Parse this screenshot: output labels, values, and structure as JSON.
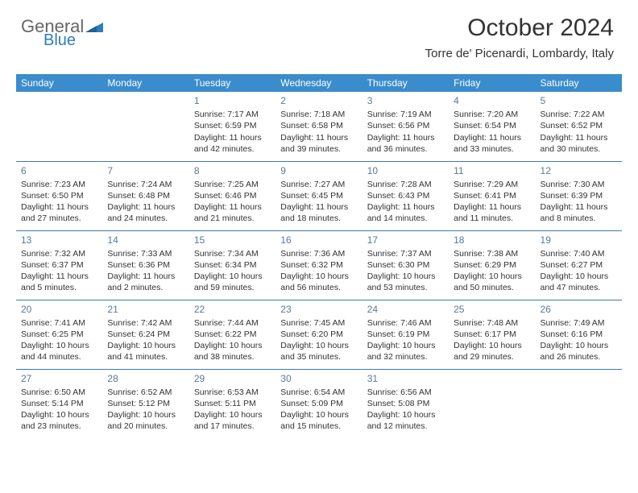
{
  "brand": {
    "line1": "General",
    "line2": "Blue",
    "tri_color": "#2f7bbf"
  },
  "header": {
    "month_year": "October 2024",
    "location": "Torre de' Picenardi, Lombardy, Italy"
  },
  "colors": {
    "header_bg": "#3b8ccc",
    "header_text": "#ffffff",
    "rule": "#3b7bb0",
    "daynum": "#5a7a94",
    "text": "#333333"
  },
  "daysOfWeek": [
    "Sunday",
    "Monday",
    "Tuesday",
    "Wednesday",
    "Thursday",
    "Friday",
    "Saturday"
  ],
  "weeks": [
    [
      null,
      null,
      {
        "n": "1",
        "sunrise": "Sunrise: 7:17 AM",
        "sunset": "Sunset: 6:59 PM",
        "daylight": "Daylight: 11 hours and 42 minutes."
      },
      {
        "n": "2",
        "sunrise": "Sunrise: 7:18 AM",
        "sunset": "Sunset: 6:58 PM",
        "daylight": "Daylight: 11 hours and 39 minutes."
      },
      {
        "n": "3",
        "sunrise": "Sunrise: 7:19 AM",
        "sunset": "Sunset: 6:56 PM",
        "daylight": "Daylight: 11 hours and 36 minutes."
      },
      {
        "n": "4",
        "sunrise": "Sunrise: 7:20 AM",
        "sunset": "Sunset: 6:54 PM",
        "daylight": "Daylight: 11 hours and 33 minutes."
      },
      {
        "n": "5",
        "sunrise": "Sunrise: 7:22 AM",
        "sunset": "Sunset: 6:52 PM",
        "daylight": "Daylight: 11 hours and 30 minutes."
      }
    ],
    [
      {
        "n": "6",
        "sunrise": "Sunrise: 7:23 AM",
        "sunset": "Sunset: 6:50 PM",
        "daylight": "Daylight: 11 hours and 27 minutes."
      },
      {
        "n": "7",
        "sunrise": "Sunrise: 7:24 AM",
        "sunset": "Sunset: 6:48 PM",
        "daylight": "Daylight: 11 hours and 24 minutes."
      },
      {
        "n": "8",
        "sunrise": "Sunrise: 7:25 AM",
        "sunset": "Sunset: 6:46 PM",
        "daylight": "Daylight: 11 hours and 21 minutes."
      },
      {
        "n": "9",
        "sunrise": "Sunrise: 7:27 AM",
        "sunset": "Sunset: 6:45 PM",
        "daylight": "Daylight: 11 hours and 18 minutes."
      },
      {
        "n": "10",
        "sunrise": "Sunrise: 7:28 AM",
        "sunset": "Sunset: 6:43 PM",
        "daylight": "Daylight: 11 hours and 14 minutes."
      },
      {
        "n": "11",
        "sunrise": "Sunrise: 7:29 AM",
        "sunset": "Sunset: 6:41 PM",
        "daylight": "Daylight: 11 hours and 11 minutes."
      },
      {
        "n": "12",
        "sunrise": "Sunrise: 7:30 AM",
        "sunset": "Sunset: 6:39 PM",
        "daylight": "Daylight: 11 hours and 8 minutes."
      }
    ],
    [
      {
        "n": "13",
        "sunrise": "Sunrise: 7:32 AM",
        "sunset": "Sunset: 6:37 PM",
        "daylight": "Daylight: 11 hours and 5 minutes."
      },
      {
        "n": "14",
        "sunrise": "Sunrise: 7:33 AM",
        "sunset": "Sunset: 6:36 PM",
        "daylight": "Daylight: 11 hours and 2 minutes."
      },
      {
        "n": "15",
        "sunrise": "Sunrise: 7:34 AM",
        "sunset": "Sunset: 6:34 PM",
        "daylight": "Daylight: 10 hours and 59 minutes."
      },
      {
        "n": "16",
        "sunrise": "Sunrise: 7:36 AM",
        "sunset": "Sunset: 6:32 PM",
        "daylight": "Daylight: 10 hours and 56 minutes."
      },
      {
        "n": "17",
        "sunrise": "Sunrise: 7:37 AM",
        "sunset": "Sunset: 6:30 PM",
        "daylight": "Daylight: 10 hours and 53 minutes."
      },
      {
        "n": "18",
        "sunrise": "Sunrise: 7:38 AM",
        "sunset": "Sunset: 6:29 PM",
        "daylight": "Daylight: 10 hours and 50 minutes."
      },
      {
        "n": "19",
        "sunrise": "Sunrise: 7:40 AM",
        "sunset": "Sunset: 6:27 PM",
        "daylight": "Daylight: 10 hours and 47 minutes."
      }
    ],
    [
      {
        "n": "20",
        "sunrise": "Sunrise: 7:41 AM",
        "sunset": "Sunset: 6:25 PM",
        "daylight": "Daylight: 10 hours and 44 minutes."
      },
      {
        "n": "21",
        "sunrise": "Sunrise: 7:42 AM",
        "sunset": "Sunset: 6:24 PM",
        "daylight": "Daylight: 10 hours and 41 minutes."
      },
      {
        "n": "22",
        "sunrise": "Sunrise: 7:44 AM",
        "sunset": "Sunset: 6:22 PM",
        "daylight": "Daylight: 10 hours and 38 minutes."
      },
      {
        "n": "23",
        "sunrise": "Sunrise: 7:45 AM",
        "sunset": "Sunset: 6:20 PM",
        "daylight": "Daylight: 10 hours and 35 minutes."
      },
      {
        "n": "24",
        "sunrise": "Sunrise: 7:46 AM",
        "sunset": "Sunset: 6:19 PM",
        "daylight": "Daylight: 10 hours and 32 minutes."
      },
      {
        "n": "25",
        "sunrise": "Sunrise: 7:48 AM",
        "sunset": "Sunset: 6:17 PM",
        "daylight": "Daylight: 10 hours and 29 minutes."
      },
      {
        "n": "26",
        "sunrise": "Sunrise: 7:49 AM",
        "sunset": "Sunset: 6:16 PM",
        "daylight": "Daylight: 10 hours and 26 minutes."
      }
    ],
    [
      {
        "n": "27",
        "sunrise": "Sunrise: 6:50 AM",
        "sunset": "Sunset: 5:14 PM",
        "daylight": "Daylight: 10 hours and 23 minutes."
      },
      {
        "n": "28",
        "sunrise": "Sunrise: 6:52 AM",
        "sunset": "Sunset: 5:12 PM",
        "daylight": "Daylight: 10 hours and 20 minutes."
      },
      {
        "n": "29",
        "sunrise": "Sunrise: 6:53 AM",
        "sunset": "Sunset: 5:11 PM",
        "daylight": "Daylight: 10 hours and 17 minutes."
      },
      {
        "n": "30",
        "sunrise": "Sunrise: 6:54 AM",
        "sunset": "Sunset: 5:09 PM",
        "daylight": "Daylight: 10 hours and 15 minutes."
      },
      {
        "n": "31",
        "sunrise": "Sunrise: 6:56 AM",
        "sunset": "Sunset: 5:08 PM",
        "daylight": "Daylight: 10 hours and 12 minutes."
      },
      null,
      null
    ]
  ]
}
